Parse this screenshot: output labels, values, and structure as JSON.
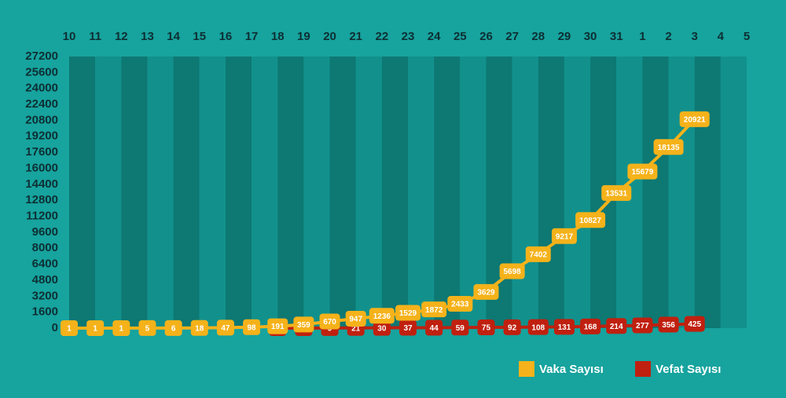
{
  "chart_data": {
    "type": "line",
    "categories": [
      "10",
      "11",
      "12",
      "13",
      "14",
      "15",
      "16",
      "17",
      "18",
      "19",
      "20",
      "21",
      "22",
      "23",
      "24",
      "25",
      "26",
      "27",
      "28",
      "29",
      "30",
      "31",
      "1",
      "2",
      "3",
      "4",
      "5"
    ],
    "series": [
      {
        "name": "Vefat Sayısı",
        "color": "#c0200f",
        "values": [
          null,
          null,
          null,
          null,
          null,
          null,
          null,
          null,
          2,
          4,
          9,
          21,
          30,
          37,
          44,
          59,
          75,
          92,
          108,
          131,
          168,
          214,
          277,
          356,
          425,
          null,
          null
        ]
      },
      {
        "name": "Vaka Sayısı",
        "color": "#f5b21a",
        "values": [
          1,
          1,
          1,
          5,
          6,
          18,
          47,
          98,
          191,
          359,
          670,
          947,
          1236,
          1529,
          1872,
          2433,
          3629,
          5698,
          7402,
          9217,
          10827,
          13531,
          15679,
          18135,
          20921,
          null,
          null
        ]
      }
    ],
    "ylim": [
      0,
      27200
    ],
    "yticks": [
      0,
      1600,
      3200,
      4800,
      6400,
      8000,
      9600,
      11200,
      12800,
      14400,
      16000,
      17600,
      19200,
      20800,
      22400,
      24000,
      25600,
      27200
    ],
    "grid": false
  }
}
